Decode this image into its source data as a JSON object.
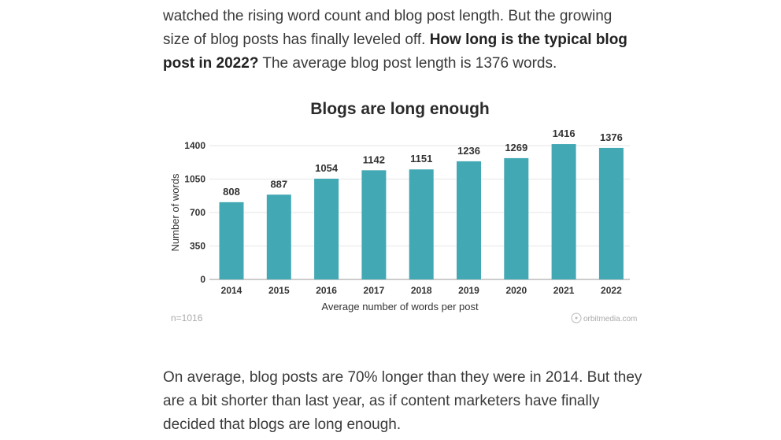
{
  "intro": {
    "line1": "watched the rising word count and blog post length. But the growing",
    "line2a": "size of blog posts has finally leveled off. ",
    "bold": "How long is the typical blog post in 2022?",
    "rest": " The average blog post length is 1376 words."
  },
  "outro": "On average, blog posts are 70% longer than they were in 2014. But they are a bit shorter than last year, as if content marketers have finally decided that blogs are long enough.",
  "chart_data": {
    "type": "bar",
    "title": "Blogs are long enough",
    "xlabel": "Average number of words per post",
    "ylabel": "Number of words",
    "categories": [
      "2014",
      "2015",
      "2016",
      "2017",
      "2018",
      "2019",
      "2020",
      "2021",
      "2022"
    ],
    "values": [
      808,
      887,
      1054,
      1142,
      1151,
      1236,
      1269,
      1416,
      1376
    ],
    "yticks": [
      0,
      350,
      700,
      1050,
      1400
    ],
    "ylim": [
      0,
      1400
    ],
    "grid": true,
    "bar_color": "#42a8b4",
    "note": "n=1016",
    "source": "orbitmedia.com"
  }
}
